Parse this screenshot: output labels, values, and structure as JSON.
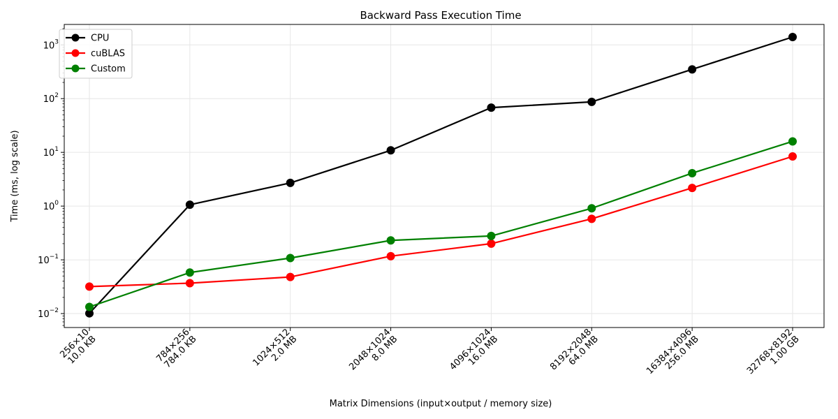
{
  "chart_data": {
    "type": "line",
    "title": "Backward Pass Execution Time",
    "xlabel": "Matrix Dimensions (input×output / memory size)",
    "ylabel": "Time (ms, log scale)",
    "yscale": "log",
    "ylim": [
      0.0055,
      2400
    ],
    "grid": true,
    "legend_position": "top-left",
    "categories": [
      [
        "256×10",
        "10.0 KB"
      ],
      [
        "784×256",
        "784.0 KB"
      ],
      [
        "1024×512",
        "2.0 MB"
      ],
      [
        "2048×1024",
        "8.0 MB"
      ],
      [
        "4096×1024",
        "16.0 MB"
      ],
      [
        "8192×2048",
        "64.0 MB"
      ],
      [
        "16384×4096",
        "256.0 MB"
      ],
      [
        "32768×8192",
        "1.00 GB"
      ]
    ],
    "y_ticks": [
      {
        "value": 0.01,
        "base": "10",
        "exp": "−2"
      },
      {
        "value": 0.1,
        "base": "10",
        "exp": "−1"
      },
      {
        "value": 1,
        "base": "10",
        "exp": "0"
      },
      {
        "value": 10,
        "base": "10",
        "exp": "1"
      },
      {
        "value": 100,
        "base": "10",
        "exp": "2"
      },
      {
        "value": 1000,
        "base": "10",
        "exp": "3"
      }
    ],
    "series": [
      {
        "name": "CPU",
        "color": "#000000",
        "values": [
          0.0101,
          1.06,
          2.7,
          10.9,
          68,
          87,
          350,
          1400
        ]
      },
      {
        "name": "cuBLAS",
        "color": "#ff0000",
        "values": [
          0.0318,
          0.0368,
          0.048,
          0.117,
          0.2,
          0.58,
          2.18,
          8.4
        ]
      },
      {
        "name": "Custom",
        "color": "#008000",
        "values": [
          0.0133,
          0.058,
          0.108,
          0.23,
          0.278,
          0.91,
          4.1,
          16.0
        ]
      }
    ]
  }
}
